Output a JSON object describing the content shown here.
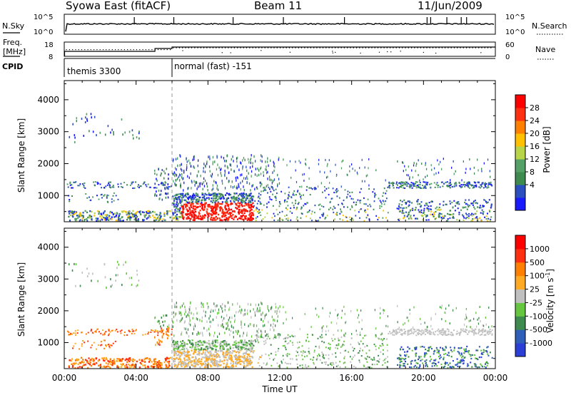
{
  "header": {
    "title": "Syowa East (fitACF)",
    "beam": "Beam 11",
    "date": "11/Jun/2009"
  },
  "status_panels": {
    "nsky_label": "N.Sky",
    "nsearch_label": "N.Search",
    "noise_ticks": [
      "10^5",
      "10^0"
    ],
    "freq_label_1": "Freq.",
    "freq_label_2": "[MHz]",
    "freq_ticks": [
      "18",
      "8"
    ],
    "nave_label": "Nave",
    "nave_ticks": [
      "60",
      "0"
    ],
    "cpid_label": "CPID",
    "cpid_segments": [
      {
        "label": "themis 3300",
        "start_hour": 0.0,
        "end_hour": 6.0
      },
      {
        "label": "normal (fast) -151",
        "start_hour": 6.0,
        "end_hour": 24.0
      }
    ]
  },
  "colors": {
    "power_scale": [
      "#1a1aff",
      "#2b4fbf",
      "#3e8a4f",
      "#55a066",
      "#b8d448",
      "#ffc000",
      "#ff8000",
      "#ff3010",
      "#ff0000"
    ],
    "velocity_scale": [
      "#2b3fd6",
      "#2f5fb8",
      "#3e8a4f",
      "#66c640",
      "#c0c0c0",
      "#ffaa22",
      "#ff8000",
      "#ff3010",
      "#ff0000"
    ],
    "frame": "#000000",
    "separator": "#999999"
  },
  "chart_data": [
    {
      "type": "heatmap",
      "name": "power",
      "ylabel": "Slant Range [km]",
      "ylim": [
        180,
        4600
      ],
      "yticks": [
        "1000",
        "2000",
        "3000",
        "4000"
      ],
      "colorbar_label": "Power [dB]",
      "colorbar_ticks": [
        "28",
        "24",
        "20",
        "16",
        "12",
        "8",
        "4"
      ],
      "clim": [
        0,
        32
      ]
    },
    {
      "type": "heatmap",
      "name": "velocity",
      "ylabel": "Slant Range [km]",
      "ylim": [
        180,
        4600
      ],
      "yticks": [
        "1000",
        "2000",
        "3000",
        "4000"
      ],
      "colorbar_label": "Velocity [m s",
      "colorbar_label_sup": "-1",
      "colorbar_label_end": "]",
      "colorbar_ticks": [
        "1000",
        "500",
        "100",
        "25",
        "-25",
        "-100",
        "-500",
        "-1000"
      ]
    }
  ],
  "x_axis": {
    "title": "Time UT",
    "xlim": [
      0,
      24
    ],
    "ticks": [
      "00:00",
      "04:00",
      "08:00",
      "12:00",
      "16:00",
      "20:00",
      "00:00"
    ]
  }
}
